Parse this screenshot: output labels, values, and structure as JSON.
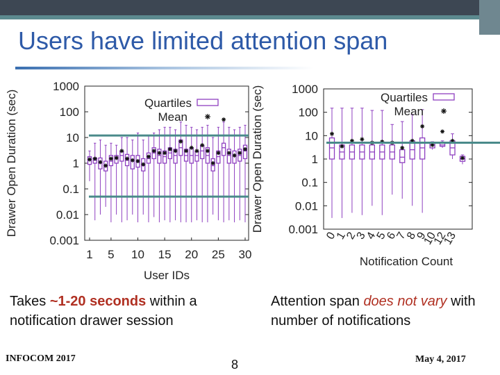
{
  "slide": {
    "title": "Users have limited attention span",
    "left_caption": {
      "pre": "Takes ",
      "highlight": "~1-20 seconds",
      "post": " within a notification drawer session"
    },
    "right_caption": {
      "pre": "Attention span ",
      "highlight": "does not vary",
      "post": " with number of notifications"
    },
    "footer_left": "INFOCOM 2017",
    "page_number": "8",
    "footer_right": "May 4, 2017"
  },
  "colors": {
    "title": "#2e5aa8",
    "box": "#8e3fc0",
    "mean": "#111111",
    "highlight": "#b03022",
    "reference_line": "#4a8a8a"
  },
  "chart_data": [
    {
      "type": "boxplot",
      "xlabel": "User IDs",
      "ylabel": "Drawer Open Duration (sec)",
      "yscale": "log",
      "ylim": [
        0.001,
        1000
      ],
      "yticks": [
        "1000",
        "100",
        "10",
        "1",
        "0.1",
        "0.01",
        "0.001"
      ],
      "xticks": [
        "1",
        "5",
        "10",
        "15",
        "20",
        "25",
        "30"
      ],
      "legend": {
        "entries": [
          "Quartiles",
          "Mean"
        ],
        "placement": "top-right"
      },
      "reference_lines": [
        12,
        0.05
      ],
      "users": [
        {
          "id": 1,
          "q1": 0.9,
          "median": 1.3,
          "q3": 1.8,
          "mean": 1.4,
          "min": 0.2,
          "max": 3
        },
        {
          "id": 2,
          "q1": 1.0,
          "median": 1.3,
          "q3": 1.6,
          "mean": 1.5,
          "min": 0.006,
          "max": 6
        },
        {
          "id": 3,
          "q1": 0.6,
          "median": 1.0,
          "q3": 1.6,
          "mean": 1.1,
          "min": 0.01,
          "max": 8
        },
        {
          "id": 4,
          "q1": 0.5,
          "median": 0.8,
          "q3": 1.2,
          "mean": 0.8,
          "min": 0.02,
          "max": 5
        },
        {
          "id": 5,
          "q1": 0.8,
          "median": 1.2,
          "q3": 2.0,
          "mean": 1.5,
          "min": 0.005,
          "max": 6
        },
        {
          "id": 6,
          "q1": 1.0,
          "median": 1.5,
          "q3": 2.0,
          "mean": 1.6,
          "min": 0.01,
          "max": 5
        },
        {
          "id": 7,
          "q1": 1.2,
          "median": 2.0,
          "q3": 3.0,
          "mean": 3.0,
          "min": 0.005,
          "max": 10
        },
        {
          "id": 8,
          "q1": 0.8,
          "median": 1.3,
          "q3": 2.2,
          "mean": 1.5,
          "min": 0.006,
          "max": 10
        },
        {
          "id": 9,
          "q1": 0.6,
          "median": 1.2,
          "q3": 2.0,
          "mean": 1.3,
          "min": 0.01,
          "max": 8
        },
        {
          "id": 10,
          "q1": 0.7,
          "median": 1.2,
          "q3": 2.0,
          "mean": 1.2,
          "min": 0.005,
          "max": 15
        },
        {
          "id": 11,
          "q1": 0.5,
          "median": 0.8,
          "q3": 1.5,
          "mean": 0.9,
          "min": 0.01,
          "max": 8
        },
        {
          "id": 12,
          "q1": 1.0,
          "median": 1.5,
          "q3": 2.5,
          "mean": 1.8,
          "min": 0.005,
          "max": 12
        },
        {
          "id": 13,
          "q1": 1.5,
          "median": 2.5,
          "q3": 4.0,
          "mean": 3.0,
          "min": 0.008,
          "max": 15
        },
        {
          "id": 14,
          "q1": 1.0,
          "median": 2.0,
          "q3": 3.5,
          "mean": 2.5,
          "min": 0.005,
          "max": 20
        },
        {
          "id": 15,
          "q1": 1.0,
          "median": 1.8,
          "q3": 3.0,
          "mean": 2.5,
          "min": 0.006,
          "max": 25
        },
        {
          "id": 16,
          "q1": 1.5,
          "median": 2.5,
          "q3": 4.0,
          "mean": 3.5,
          "min": 0.005,
          "max": 25
        },
        {
          "id": 17,
          "q1": 1.0,
          "median": 2.0,
          "q3": 3.5,
          "mean": 3.0,
          "min": 0.006,
          "max": 20
        },
        {
          "id": 18,
          "q1": 2.0,
          "median": 4.0,
          "q3": 8.0,
          "mean": 7.0,
          "min": 0.005,
          "max": 40
        },
        {
          "id": 19,
          "q1": 1.2,
          "median": 2.0,
          "q3": 3.5,
          "mean": 3.0,
          "min": 0.005,
          "max": 30
        },
        {
          "id": 20,
          "q1": 1.0,
          "median": 2.0,
          "q3": 4.0,
          "mean": 4.0,
          "min": 0.005,
          "max": 25
        },
        {
          "id": 21,
          "q1": 1.2,
          "median": 2.0,
          "q3": 3.0,
          "mean": 3.0,
          "min": 0.006,
          "max": 20
        },
        {
          "id": 22,
          "q1": 1.5,
          "median": 3.0,
          "q3": 5.0,
          "mean": 5.0,
          "min": 0.005,
          "max": 25
        },
        {
          "id": 23,
          "q1": 1.0,
          "median": 2.0,
          "q3": 4.0,
          "mean": 3.0,
          "min": 0.005,
          "max": 30
        },
        {
          "id": 24,
          "q1": 0.5,
          "median": 0.8,
          "q3": 1.5,
          "mean": 1.0,
          "min": 0.01,
          "max": 10
        },
        {
          "id": 25,
          "q1": 1.0,
          "median": 1.8,
          "q3": 3.0,
          "mean": 2.5,
          "min": 0.006,
          "max": 25
        },
        {
          "id": 26,
          "q1": 2.0,
          "median": 4.0,
          "q3": 6.0,
          "mean": 50.0,
          "min": 0.005,
          "max": 40
        },
        {
          "id": 27,
          "q1": 1.0,
          "median": 2.0,
          "q3": 3.5,
          "mean": 2.5,
          "min": 0.006,
          "max": 25
        },
        {
          "id": 28,
          "q1": 1.0,
          "median": 2.0,
          "q3": 3.0,
          "mean": 2.0,
          "min": 0.005,
          "max": 20
        },
        {
          "id": 29,
          "q1": 1.2,
          "median": 2.0,
          "q3": 3.5,
          "mean": 2.5,
          "min": 0.006,
          "max": 25
        },
        {
          "id": 30,
          "q1": 1.5,
          "median": 3.0,
          "q3": 5.0,
          "mean": 3.5,
          "min": 0.005,
          "max": 30
        }
      ]
    },
    {
      "type": "boxplot",
      "xlabel": "Notification Count",
      "ylabel": "Drawer Open Duration (sec)",
      "yscale": "log",
      "ylim": [
        0.001,
        1000
      ],
      "yticks": [
        "1000",
        "100",
        "10",
        "1",
        "0.1",
        "0.01",
        "0.001"
      ],
      "legend": {
        "entries": [
          "Quartiles",
          "Mean"
        ],
        "placement": "top-right"
      },
      "reference_line": 5,
      "groups": [
        {
          "label": "0",
          "q1": 1.0,
          "median": 3.0,
          "q3": 8.0,
          "mean": 12,
          "min": 0.003,
          "max": 150
        },
        {
          "label": "1",
          "q1": 1.0,
          "median": 2.0,
          "q3": 4.0,
          "mean": 3.5,
          "min": 0.003,
          "max": 150
        },
        {
          "label": "2",
          "q1": 1.0,
          "median": 2.0,
          "q3": 4.0,
          "mean": 6,
          "min": 0.005,
          "max": 150
        },
        {
          "label": "3",
          "q1": 1.0,
          "median": 2.0,
          "q3": 4.0,
          "mean": 7,
          "min": 0.004,
          "max": 150
        },
        {
          "label": "4",
          "q1": 1.0,
          "median": 2.0,
          "q3": 4.0,
          "mean": 5,
          "min": 0.01,
          "max": 120
        },
        {
          "label": "5",
          "q1": 1.0,
          "median": 2.0,
          "q3": 4.0,
          "mean": 5.5,
          "min": 0.004,
          "max": 120
        },
        {
          "label": "6",
          "q1": 1.0,
          "median": 2.0,
          "q3": 4.0,
          "mean": 5,
          "min": 0.03,
          "max": 30
        },
        {
          "label": "7",
          "q1": 0.7,
          "median": 1.2,
          "q3": 2.5,
          "mean": 3,
          "min": 0.02,
          "max": 40
        },
        {
          "label": "8",
          "q1": 1.0,
          "median": 2.5,
          "q3": 6.0,
          "mean": 6,
          "min": 0.01,
          "max": 80
        },
        {
          "label": "9",
          "q1": 1.0,
          "median": 3.0,
          "q3": 8.0,
          "mean": 25,
          "min": 0.005,
          "max": 130
        },
        {
          "label": "10",
          "q1": 3.0,
          "median": 4.0,
          "q3": 5.0,
          "mean": 4,
          "min": 2.5,
          "max": 5.5
        },
        {
          "label": "12",
          "q1": 3.5,
          "median": 4.0,
          "q3": 5.0,
          "mean": 15,
          "min": 3,
          "max": 6
        },
        {
          "label": "13",
          "q1": 1.5,
          "median": 3.0,
          "q3": 6.0,
          "mean": 6,
          "min": 1,
          "max": 12
        },
        {
          "label": "",
          "q1": 0.8,
          "median": 1.0,
          "q3": 1.3,
          "mean": 1.1,
          "min": 0.6,
          "max": 1.5
        }
      ]
    }
  ]
}
